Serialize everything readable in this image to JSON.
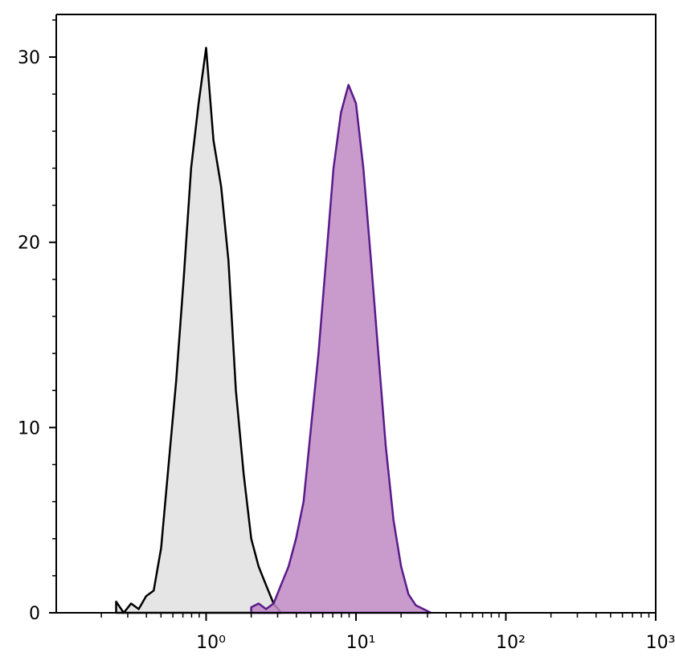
{
  "chart_data": {
    "type": "area",
    "xscale": "log",
    "x": [
      0.251,
      0.282,
      0.316,
      0.355,
      0.398,
      0.447,
      0.501,
      0.562,
      0.631,
      0.708,
      0.794,
      0.891,
      1.0,
      1.12,
      1.26,
      1.41,
      1.58,
      1.78,
      2.0,
      2.24,
      2.51,
      2.82,
      3.16,
      3.55,
      3.98,
      4.47,
      5.01,
      5.62,
      6.31,
      7.08,
      7.94,
      8.91,
      10.0,
      11.2,
      12.6,
      14.1,
      15.8,
      17.8,
      20.0,
      22.4,
      25.1,
      28.2,
      31.6
    ],
    "series": [
      {
        "color": "#000000",
        "fill": "#e0e0e0",
        "values": [
          0.6,
          0,
          0.5,
          0.2,
          0.9,
          1.2,
          3.5,
          8,
          12.5,
          18,
          24,
          27.5,
          30.5,
          25.5,
          23,
          19,
          12,
          7.5,
          4,
          2.5,
          1.5,
          0.5,
          0,
          null,
          null,
          null,
          null,
          null,
          null,
          null,
          null,
          null,
          null,
          null,
          null,
          null,
          null,
          null,
          null,
          null,
          null,
          null,
          null
        ]
      },
      {
        "color": "#5a1a8a",
        "fill": "#c08ac4",
        "values": [
          null,
          null,
          null,
          null,
          null,
          null,
          null,
          null,
          null,
          null,
          null,
          null,
          null,
          null,
          null,
          null,
          null,
          null,
          0.3,
          0.5,
          0.2,
          0.5,
          1.5,
          2.5,
          4,
          6,
          10,
          14,
          19,
          24,
          27,
          28.5,
          27.5,
          24,
          19,
          14,
          9,
          5,
          2.5,
          1,
          0.4,
          0.2,
          0
        ]
      }
    ],
    "xlim": [
      0.1,
      1000
    ],
    "xticks": [
      {
        "value": 1,
        "label": "10⁰"
      },
      {
        "value": 10,
        "label": "10¹"
      },
      {
        "value": 100,
        "label": "10²"
      },
      {
        "value": 1000,
        "label": "10³"
      }
    ],
    "xminor_ticks": [
      0.2,
      0.3,
      0.4,
      0.5,
      0.6,
      0.7,
      0.8,
      0.9,
      2,
      3,
      4,
      5,
      6,
      7,
      8,
      9,
      20,
      30,
      40,
      50,
      60,
      70,
      80,
      90,
      200,
      300,
      400,
      500,
      600,
      700,
      800,
      900
    ],
    "ylim": [
      0,
      32.3
    ],
    "yticks": [
      0,
      10,
      20,
      30
    ],
    "yminor_ticks": [
      2,
      4,
      6,
      8,
      12,
      14,
      16,
      18,
      22,
      24,
      26,
      28,
      32
    ]
  }
}
